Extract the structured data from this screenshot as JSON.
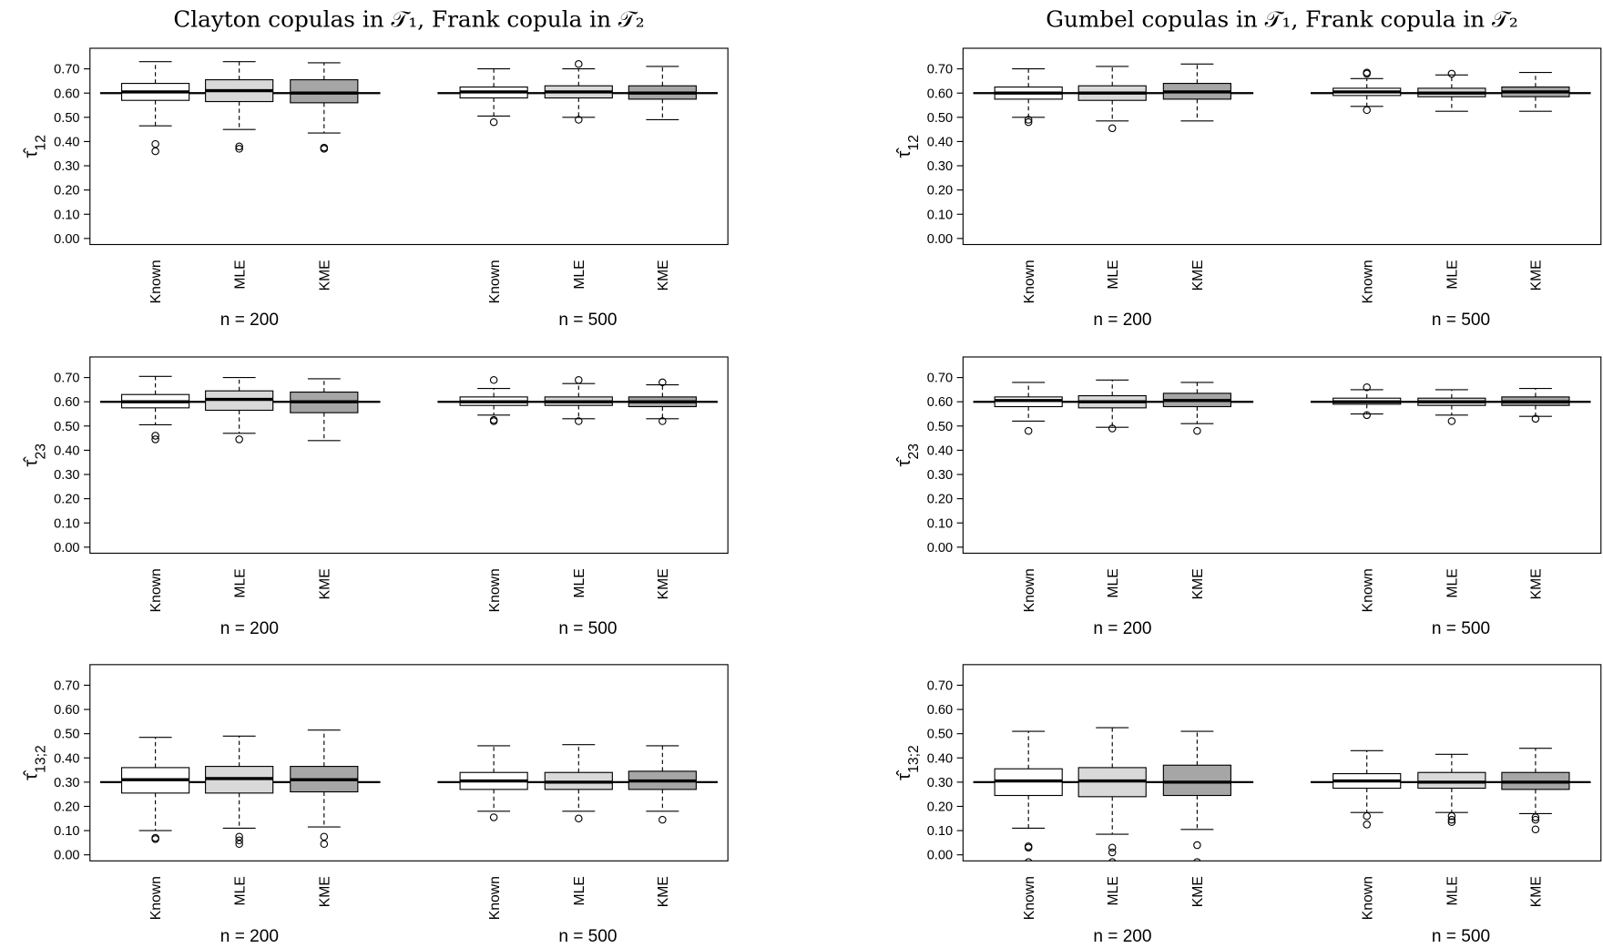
{
  "chart_data": [
    {
      "type": "box",
      "title": "Clayton copulas in 𝒯₁, Frank copula in 𝒯₂",
      "ylabel": "τ̂",
      "ylabel_subscript": "12",
      "groups": [
        "n = 200",
        "n = 500"
      ],
      "categories": [
        "Known",
        "MLE",
        "KME",
        "Known",
        "MLE",
        "KME"
      ],
      "colors": [
        "#ffffff",
        "#d9d9d9",
        "#a6a6a6",
        "#ffffff",
        "#d9d9d9",
        "#a6a6a6"
      ],
      "hline": 0.6,
      "ylim": [
        -0.025,
        0.785
      ],
      "yticks": [
        {
          "value": 0,
          "label": "0.00"
        },
        {
          "value": 0.1,
          "label": "0.10"
        },
        {
          "value": 0.2,
          "label": "0.20"
        },
        {
          "value": 0.3,
          "label": "0.30"
        },
        {
          "value": 0.4,
          "label": "0.40"
        },
        {
          "value": 0.5,
          "label": "0.50"
        },
        {
          "value": 0.6,
          "label": "0.60"
        },
        {
          "value": 0.7,
          "label": "0.70"
        }
      ],
      "boxes": [
        {
          "whislo": 0.465,
          "q1": 0.57,
          "med": 0.605,
          "q3": 0.64,
          "whishi": 0.73,
          "fliers": [
            0.39,
            0.36
          ]
        },
        {
          "whislo": 0.45,
          "q1": 0.565,
          "med": 0.61,
          "q3": 0.655,
          "whishi": 0.73,
          "fliers": [
            0.38,
            0.37
          ]
        },
        {
          "whislo": 0.435,
          "q1": 0.56,
          "med": 0.6,
          "q3": 0.655,
          "whishi": 0.725,
          "fliers": [
            0.375,
            0.37
          ]
        },
        {
          "whislo": 0.505,
          "q1": 0.58,
          "med": 0.605,
          "q3": 0.625,
          "whishi": 0.7,
          "fliers": [
            0.48
          ]
        },
        {
          "whislo": 0.5,
          "q1": 0.58,
          "med": 0.605,
          "q3": 0.63,
          "whishi": 0.7,
          "fliers": [
            0.72,
            0.49
          ]
        },
        {
          "whislo": 0.49,
          "q1": 0.575,
          "med": 0.6,
          "q3": 0.63,
          "whishi": 0.71,
          "fliers": []
        }
      ]
    },
    {
      "type": "box",
      "title": "Gumbel copulas in 𝒯₁, Frank copula in 𝒯₂",
      "ylabel": "τ̂",
      "ylabel_subscript": "12",
      "groups": [
        "n = 200",
        "n = 500"
      ],
      "categories": [
        "Known",
        "MLE",
        "KME",
        "Known",
        "MLE",
        "KME"
      ],
      "colors": [
        "#ffffff",
        "#d9d9d9",
        "#a6a6a6",
        "#ffffff",
        "#d9d9d9",
        "#a6a6a6"
      ],
      "hline": 0.6,
      "ylim": [
        -0.025,
        0.785
      ],
      "yticks": [
        {
          "value": 0,
          "label": "0.00"
        },
        {
          "value": 0.1,
          "label": "0.10"
        },
        {
          "value": 0.2,
          "label": "0.20"
        },
        {
          "value": 0.3,
          "label": "0.30"
        },
        {
          "value": 0.4,
          "label": "0.40"
        },
        {
          "value": 0.5,
          "label": "0.50"
        },
        {
          "value": 0.6,
          "label": "0.60"
        },
        {
          "value": 0.7,
          "label": "0.70"
        }
      ],
      "boxes": [
        {
          "whislo": 0.5,
          "q1": 0.575,
          "med": 0.6,
          "q3": 0.625,
          "whishi": 0.7,
          "fliers": [
            0.49,
            0.48
          ]
        },
        {
          "whislo": 0.485,
          "q1": 0.57,
          "med": 0.6,
          "q3": 0.63,
          "whishi": 0.71,
          "fliers": [
            0.455
          ]
        },
        {
          "whislo": 0.485,
          "q1": 0.575,
          "med": 0.605,
          "q3": 0.64,
          "whishi": 0.72,
          "fliers": []
        },
        {
          "whislo": 0.545,
          "q1": 0.59,
          "med": 0.605,
          "q3": 0.62,
          "whishi": 0.66,
          "fliers": [
            0.68,
            0.685,
            0.53
          ]
        },
        {
          "whislo": 0.525,
          "q1": 0.585,
          "med": 0.6,
          "q3": 0.62,
          "whishi": 0.675,
          "fliers": [
            0.68
          ]
        },
        {
          "whislo": 0.525,
          "q1": 0.585,
          "med": 0.605,
          "q3": 0.625,
          "whishi": 0.685,
          "fliers": []
        }
      ]
    },
    {
      "type": "box",
      "ylabel": "τ̂",
      "ylabel_subscript": "23",
      "groups": [
        "n = 200",
        "n = 500"
      ],
      "categories": [
        "Known",
        "MLE",
        "KME",
        "Known",
        "MLE",
        "KME"
      ],
      "colors": [
        "#ffffff",
        "#d9d9d9",
        "#a6a6a6",
        "#ffffff",
        "#d9d9d9",
        "#a6a6a6"
      ],
      "hline": 0.6,
      "ylim": [
        -0.025,
        0.785
      ],
      "yticks": [
        {
          "value": 0,
          "label": "0.00"
        },
        {
          "value": 0.1,
          "label": "0.10"
        },
        {
          "value": 0.2,
          "label": "0.20"
        },
        {
          "value": 0.3,
          "label": "0.30"
        },
        {
          "value": 0.4,
          "label": "0.40"
        },
        {
          "value": 0.5,
          "label": "0.50"
        },
        {
          "value": 0.6,
          "label": "0.60"
        },
        {
          "value": 0.7,
          "label": "0.70"
        }
      ],
      "boxes": [
        {
          "whislo": 0.505,
          "q1": 0.575,
          "med": 0.6,
          "q3": 0.63,
          "whishi": 0.705,
          "fliers": [
            0.46,
            0.445
          ]
        },
        {
          "whislo": 0.47,
          "q1": 0.565,
          "med": 0.61,
          "q3": 0.645,
          "whishi": 0.7,
          "fliers": [
            0.445
          ]
        },
        {
          "whislo": 0.44,
          "q1": 0.555,
          "med": 0.6,
          "q3": 0.64,
          "whishi": 0.695,
          "fliers": []
        },
        {
          "whislo": 0.545,
          "q1": 0.585,
          "med": 0.6,
          "q3": 0.62,
          "whishi": 0.655,
          "fliers": [
            0.69,
            0.525,
            0.52
          ]
        },
        {
          "whislo": 0.53,
          "q1": 0.585,
          "med": 0.6,
          "q3": 0.62,
          "whishi": 0.675,
          "fliers": [
            0.69,
            0.52
          ]
        },
        {
          "whislo": 0.53,
          "q1": 0.58,
          "med": 0.6,
          "q3": 0.62,
          "whishi": 0.67,
          "fliers": [
            0.68,
            0.52
          ]
        }
      ]
    },
    {
      "type": "box",
      "ylabel": "τ̂",
      "ylabel_subscript": "23",
      "groups": [
        "n = 200",
        "n = 500"
      ],
      "categories": [
        "Known",
        "MLE",
        "KME",
        "Known",
        "MLE",
        "KME"
      ],
      "colors": [
        "#ffffff",
        "#d9d9d9",
        "#a6a6a6",
        "#ffffff",
        "#d9d9d9",
        "#a6a6a6"
      ],
      "hline": 0.6,
      "ylim": [
        -0.025,
        0.785
      ],
      "yticks": [
        {
          "value": 0,
          "label": "0.00"
        },
        {
          "value": 0.1,
          "label": "0.10"
        },
        {
          "value": 0.2,
          "label": "0.20"
        },
        {
          "value": 0.3,
          "label": "0.30"
        },
        {
          "value": 0.4,
          "label": "0.40"
        },
        {
          "value": 0.5,
          "label": "0.50"
        },
        {
          "value": 0.6,
          "label": "0.60"
        },
        {
          "value": 0.7,
          "label": "0.70"
        }
      ],
      "boxes": [
        {
          "whislo": 0.52,
          "q1": 0.58,
          "med": 0.605,
          "q3": 0.62,
          "whishi": 0.68,
          "fliers": [
            0.48
          ]
        },
        {
          "whislo": 0.495,
          "q1": 0.575,
          "med": 0.6,
          "q3": 0.625,
          "whishi": 0.69,
          "fliers": [
            0.49
          ]
        },
        {
          "whislo": 0.51,
          "q1": 0.58,
          "med": 0.605,
          "q3": 0.635,
          "whishi": 0.68,
          "fliers": [
            0.48
          ]
        },
        {
          "whislo": 0.55,
          "q1": 0.59,
          "med": 0.6,
          "q3": 0.615,
          "whishi": 0.65,
          "fliers": [
            0.66,
            0.545
          ]
        },
        {
          "whislo": 0.545,
          "q1": 0.585,
          "med": 0.6,
          "q3": 0.615,
          "whishi": 0.65,
          "fliers": [
            0.52
          ]
        },
        {
          "whislo": 0.54,
          "q1": 0.585,
          "med": 0.6,
          "q3": 0.62,
          "whishi": 0.655,
          "fliers": [
            0.53
          ]
        }
      ]
    },
    {
      "type": "box",
      "ylabel": "τ̂",
      "ylabel_subscript": "13;2",
      "groups": [
        "n = 200",
        "n = 500"
      ],
      "categories": [
        "Known",
        "MLE",
        "KME",
        "Known",
        "MLE",
        "KME"
      ],
      "colors": [
        "#ffffff",
        "#d9d9d9",
        "#a6a6a6",
        "#ffffff",
        "#d9d9d9",
        "#a6a6a6"
      ],
      "hline": 0.3,
      "ylim": [
        -0.025,
        0.785
      ],
      "yticks": [
        {
          "value": 0,
          "label": "0.00"
        },
        {
          "value": 0.1,
          "label": "0.10"
        },
        {
          "value": 0.2,
          "label": "0.20"
        },
        {
          "value": 0.3,
          "label": "0.30"
        },
        {
          "value": 0.4,
          "label": "0.40"
        },
        {
          "value": 0.5,
          "label": "0.50"
        },
        {
          "value": 0.6,
          "label": "0.60"
        },
        {
          "value": 0.7,
          "label": "0.70"
        }
      ],
      "boxes": [
        {
          "whislo": 0.1,
          "q1": 0.255,
          "med": 0.31,
          "q3": 0.36,
          "whishi": 0.485,
          "fliers": [
            0.07,
            0.065
          ]
        },
        {
          "whislo": 0.11,
          "q1": 0.255,
          "med": 0.315,
          "q3": 0.365,
          "whishi": 0.49,
          "fliers": [
            0.075,
            0.06,
            0.045
          ]
        },
        {
          "whislo": 0.115,
          "q1": 0.26,
          "med": 0.31,
          "q3": 0.365,
          "whishi": 0.515,
          "fliers": [
            0.075,
            0.045
          ]
        },
        {
          "whislo": 0.18,
          "q1": 0.27,
          "med": 0.305,
          "q3": 0.34,
          "whishi": 0.45,
          "fliers": [
            0.155
          ]
        },
        {
          "whislo": 0.18,
          "q1": 0.27,
          "med": 0.3,
          "q3": 0.34,
          "whishi": 0.455,
          "fliers": [
            0.15
          ]
        },
        {
          "whislo": 0.18,
          "q1": 0.27,
          "med": 0.305,
          "q3": 0.345,
          "whishi": 0.45,
          "fliers": [
            0.145
          ]
        }
      ]
    },
    {
      "type": "box",
      "ylabel": "τ̂",
      "ylabel_subscript": "13;2",
      "groups": [
        "n = 200",
        "n = 500"
      ],
      "categories": [
        "Known",
        "MLE",
        "KME",
        "Known",
        "MLE",
        "KME"
      ],
      "colors": [
        "#ffffff",
        "#d9d9d9",
        "#a6a6a6",
        "#ffffff",
        "#d9d9d9",
        "#a6a6a6"
      ],
      "hline": 0.3,
      "ylim": [
        -0.025,
        0.785
      ],
      "yticks": [
        {
          "value": 0,
          "label": "0.00"
        },
        {
          "value": 0.1,
          "label": "0.10"
        },
        {
          "value": 0.2,
          "label": "0.20"
        },
        {
          "value": 0.3,
          "label": "0.30"
        },
        {
          "value": 0.4,
          "label": "0.40"
        },
        {
          "value": 0.5,
          "label": "0.50"
        },
        {
          "value": 0.6,
          "label": "0.60"
        },
        {
          "value": 0.7,
          "label": "0.70"
        }
      ],
      "boxes": [
        {
          "whislo": 0.11,
          "q1": 0.245,
          "med": 0.305,
          "q3": 0.355,
          "whishi": 0.51,
          "fliers": [
            0.035,
            0.03,
            -0.03
          ]
        },
        {
          "whislo": 0.085,
          "q1": 0.24,
          "med": 0.305,
          "q3": 0.36,
          "whishi": 0.525,
          "fliers": [
            0.03,
            0.01,
            -0.03
          ]
        },
        {
          "whislo": 0.105,
          "q1": 0.245,
          "med": 0.3,
          "q3": 0.37,
          "whishi": 0.51,
          "fliers": [
            0.04,
            -0.03
          ]
        },
        {
          "whislo": 0.175,
          "q1": 0.275,
          "med": 0.305,
          "q3": 0.335,
          "whishi": 0.43,
          "fliers": [
            0.16,
            0.125
          ]
        },
        {
          "whislo": 0.175,
          "q1": 0.275,
          "med": 0.3,
          "q3": 0.34,
          "whishi": 0.415,
          "fliers": [
            0.16,
            0.145,
            0.135
          ]
        },
        {
          "whislo": 0.17,
          "q1": 0.27,
          "med": 0.3,
          "q3": 0.34,
          "whishi": 0.44,
          "fliers": [
            0.155,
            0.145,
            0.105
          ]
        }
      ]
    }
  ]
}
